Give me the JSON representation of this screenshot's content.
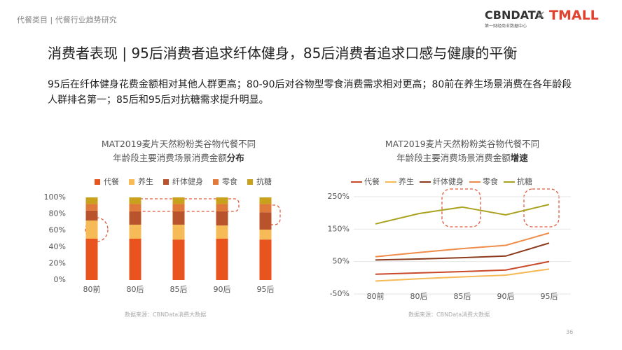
{
  "header": {
    "section": "代餐类目 | 代餐行业趋势研究",
    "logo": "CBNDATA",
    "logo_sub": "第一财经商业数据中心",
    "cross": "×",
    "partner": "TMALL"
  },
  "title": "消费者表现 | 95后消费者追求纤体健身，85后消费者追求口感与健康的平衡",
  "description": "95后在纤体健身花费金额相对其他人群更高；80-90后对谷物型零食消费需求相对更高；80前在养生场景消费在各年龄段人群排名第一；85后和95后对抗糖需求提升明显。",
  "page_number": "36",
  "chart_data": [
    {
      "type": "bar",
      "stacked": true,
      "title": "MAT2019麦片天然粉粉类谷物代餐不同年龄段主要消费场景消费金额",
      "title_emphasis": "分布",
      "categories": [
        "80前",
        "80后",
        "85后",
        "90后",
        "95后"
      ],
      "series": [
        {
          "name": "代餐",
          "color": "#e8531e",
          "values": [
            50,
            50,
            49,
            50,
            49
          ]
        },
        {
          "name": "养生",
          "color": "#f6bb57",
          "values": [
            22,
            17,
            18,
            16,
            12
          ]
        },
        {
          "name": "纤体健身",
          "color": "#b9532c",
          "values": [
            12,
            16,
            16,
            17,
            21
          ]
        },
        {
          "name": "零食",
          "color": "#e07a3a",
          "values": [
            8,
            9,
            9,
            9,
            10
          ]
        },
        {
          "name": "抗糖",
          "color": "#c9a11c",
          "values": [
            8,
            8,
            8,
            8,
            8
          ]
        }
      ],
      "ylim": [
        0,
        100
      ],
      "yticks": [
        {
          "value": 0,
          "label": "0%"
        },
        {
          "value": 20,
          "label": "20%"
        },
        {
          "value": 40,
          "label": "40%"
        },
        {
          "value": 60,
          "label": "60%"
        },
        {
          "value": 80,
          "label": "80%"
        },
        {
          "value": 100,
          "label": "100%"
        }
      ],
      "source": "数据来源：CBNData消费大数据"
    },
    {
      "type": "line",
      "title": "MAT2019麦片天然粉粉类谷物代餐不同年龄段主要消费场景消费金额",
      "title_emphasis": "增速",
      "categories": [
        "80前",
        "80后",
        "85后",
        "90后",
        "95后"
      ],
      "series": [
        {
          "name": "代餐",
          "color": "#c9482a",
          "values": [
            11,
            15,
            19,
            24,
            50
          ]
        },
        {
          "name": "养生",
          "color": "#f5b955",
          "values": [
            -10,
            -3,
            3,
            8,
            27
          ]
        },
        {
          "name": "纤体健身",
          "color": "#8b3a1e",
          "values": [
            55,
            58,
            62,
            67,
            107
          ]
        },
        {
          "name": "零食",
          "color": "#f08c4a",
          "values": [
            65,
            78,
            90,
            100,
            138
          ]
        },
        {
          "name": "抗糖",
          "color": "#a9a21e",
          "values": [
            166,
            198,
            218,
            194,
            226
          ]
        }
      ],
      "ylim": [
        -50,
        250
      ],
      "yticks": [
        {
          "value": -50,
          "label": "-50%"
        },
        {
          "value": 50,
          "label": "50%"
        },
        {
          "value": 150,
          "label": "150%"
        },
        {
          "value": 250,
          "label": "250%"
        }
      ],
      "grid": true,
      "source": "数据来源：CBNData消费大数据"
    }
  ]
}
